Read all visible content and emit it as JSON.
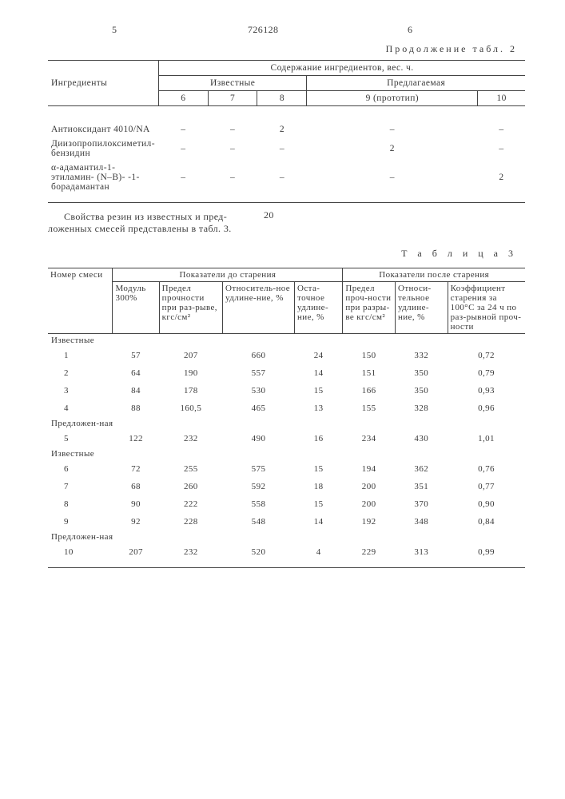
{
  "header": {
    "leftPageNum": "5",
    "patentNum": "726128",
    "rightPageNum": "6"
  },
  "table2": {
    "caption": "Продолжение табл. 2",
    "colLabels": {
      "ingredient": "Ингредиенты",
      "content": "Содержание ингредиентов, вес. ч.",
      "known": "Известные",
      "proposed": "Предлагаемая",
      "c6": "6",
      "c7": "7",
      "c8": "8",
      "c9": "9 (прототип)",
      "c10": "10"
    },
    "rows": [
      {
        "label": "Антиоксидант 4010/NA",
        "v": [
          "–",
          "–",
          "2",
          "–",
          "–"
        ]
      },
      {
        "label": "Диизопропилоксиметил-бензидин",
        "v": [
          "–",
          "–",
          "–",
          "2",
          "–"
        ]
      },
      {
        "label": "α-адамантил-1-этиламин- (N–B)- -1-борадамантан",
        "v": [
          "–",
          "–",
          "–",
          "–",
          "2"
        ]
      }
    ]
  },
  "midText": {
    "line1": "Свойства резин из известных и пред-",
    "line2": "ложенных смесей представлены в табл. 3.",
    "twenty": "20"
  },
  "table3": {
    "caption": "Т а б л и ц а   3",
    "head": {
      "mix": "Номер смеси",
      "before": "Показатели до старения",
      "after": "Показатели после старения",
      "mod": "Модуль 300%",
      "strength": "Предел прочности при раз-рыве, кгс/см²",
      "elong": "Относитель-ное удлине-ние, %",
      "resid": "Оста-точное удлине-ние, %",
      "strength2": "Предел проч-ности при разры-ве кгс/см²",
      "elong2": "Относи-тельное удлине-ние, %",
      "coeff": "Коэффициент старения за 100°С за 24 ч по раз-рывной проч-ности"
    },
    "groups": {
      "known": "Известные",
      "proposed": "Предложен-ная"
    },
    "data": [
      {
        "group": "known",
        "n": "1",
        "v": [
          "57",
          "207",
          "660",
          "24",
          "150",
          "332",
          "0,72"
        ]
      },
      {
        "group": "",
        "n": "2",
        "v": [
          "64",
          "190",
          "557",
          "14",
          "151",
          "350",
          "0,79"
        ]
      },
      {
        "group": "",
        "n": "3",
        "v": [
          "84",
          "178",
          "530",
          "15",
          "166",
          "350",
          "0,93"
        ]
      },
      {
        "group": "",
        "n": "4",
        "v": [
          "88",
          "160,5",
          "465",
          "13",
          "155",
          "328",
          "0,96"
        ]
      },
      {
        "group": "proposed",
        "n": "5",
        "v": [
          "122",
          "232",
          "490",
          "16",
          "234",
          "430",
          "1,01"
        ]
      },
      {
        "group": "known",
        "n": "6",
        "v": [
          "72",
          "255",
          "575",
          "15",
          "194",
          "362",
          "0,76"
        ]
      },
      {
        "group": "",
        "n": "7",
        "v": [
          "68",
          "260",
          "592",
          "18",
          "200",
          "351",
          "0,77"
        ]
      },
      {
        "group": "",
        "n": "8",
        "v": [
          "90",
          "222",
          "558",
          "15",
          "200",
          "370",
          "0,90"
        ]
      },
      {
        "group": "",
        "n": "9",
        "v": [
          "92",
          "228",
          "548",
          "14",
          "192",
          "348",
          "0,84"
        ]
      },
      {
        "group": "proposed",
        "n": "10",
        "v": [
          "207",
          "232",
          "520",
          "4",
          "229",
          "313",
          "0,99"
        ]
      }
    ]
  },
  "style": {
    "borderColor": "#444444",
    "textColor": "#3a3a3a",
    "background": "#ffffff",
    "fontSizeBody": 12,
    "fontSizeTable": 11
  }
}
